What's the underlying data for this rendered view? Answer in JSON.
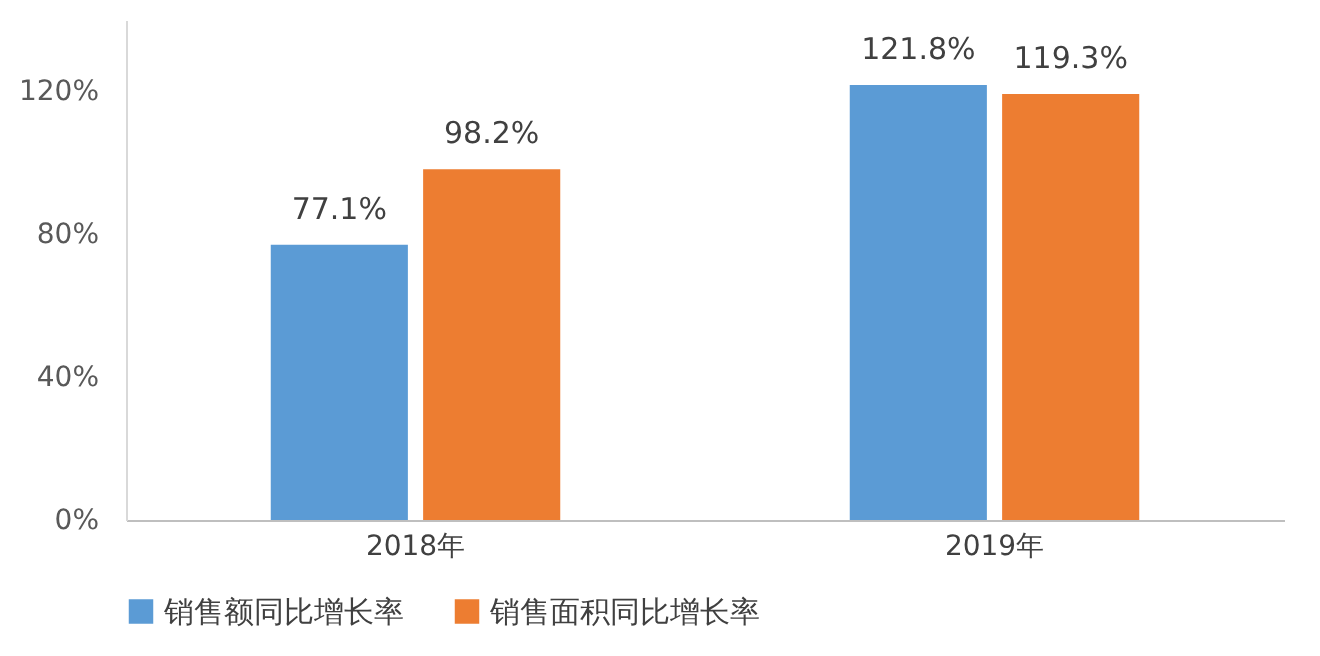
{
  "chart_data": {
    "type": "bar",
    "categories": [
      "2018年",
      "2019年"
    ],
    "series": [
      {
        "name": "销售额同比增长率",
        "color": "#5b9bd5",
        "values": [
          77.1,
          121.8
        ],
        "value_labels": [
          "77.1%",
          "121.8%"
        ]
      },
      {
        "name": "销售面积同比增长率",
        "color": "#ed7d31",
        "values": [
          98.2,
          119.3
        ],
        "value_labels": [
          "98.2%",
          "119.3%"
        ]
      }
    ],
    "ylim": [
      0,
      140
    ],
    "yticks": [
      {
        "value": 0,
        "label": "0%"
      },
      {
        "value": 40,
        "label": "40%"
      },
      {
        "value": 80,
        "label": "80%"
      },
      {
        "value": 120,
        "label": "120%"
      }
    ],
    "grid": false,
    "legend": "bottom"
  }
}
